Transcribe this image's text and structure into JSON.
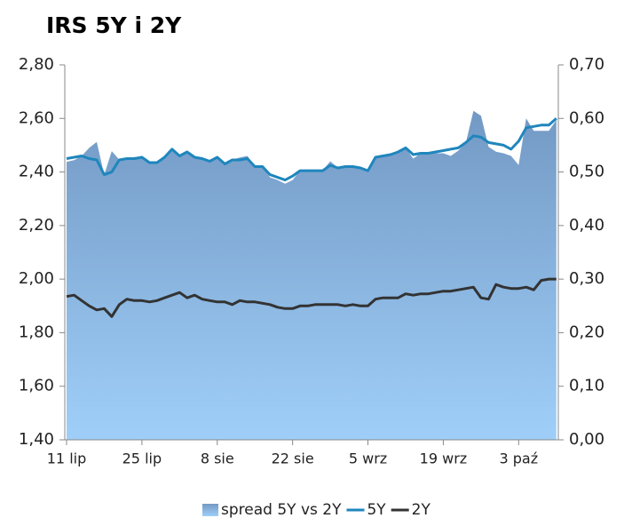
{
  "chart_data": {
    "type": "combo",
    "title": "IRS 5Y i 2Y",
    "categories": [
      "11 lip",
      null,
      null,
      null,
      null,
      null,
      null,
      null,
      null,
      null,
      "25 lip",
      null,
      null,
      null,
      null,
      null,
      null,
      null,
      null,
      null,
      "8 sie",
      null,
      null,
      null,
      null,
      null,
      null,
      null,
      null,
      null,
      "22 sie",
      null,
      null,
      null,
      null,
      null,
      null,
      null,
      null,
      null,
      "5 wrz",
      null,
      null,
      null,
      null,
      null,
      null,
      null,
      null,
      null,
      "19 wrz",
      null,
      null,
      null,
      null,
      null,
      null,
      null,
      null,
      null,
      "3 paź",
      null,
      null,
      null,
      null,
      null
    ],
    "series": [
      {
        "name": "spread 5Y vs 2Y",
        "type": "area",
        "axis": "y2",
        "color": "#7399c4",
        "values": [
          0.519,
          0.522,
          0.53,
          0.545,
          0.556,
          0.495,
          0.539,
          0.523,
          0.525,
          0.528,
          0.528,
          0.518,
          0.515,
          0.528,
          0.543,
          0.53,
          0.54,
          0.528,
          0.525,
          0.52,
          0.528,
          0.515,
          0.523,
          0.527,
          0.53,
          0.51,
          0.51,
          0.49,
          0.485,
          0.478,
          0.485,
          0.503,
          0.503,
          0.503,
          0.503,
          0.52,
          0.508,
          0.51,
          0.51,
          0.508,
          0.503,
          0.528,
          0.53,
          0.533,
          0.538,
          0.545,
          0.525,
          0.535,
          0.535,
          0.535,
          0.535,
          0.53,
          0.54,
          0.555,
          0.614,
          0.605,
          0.547,
          0.538,
          0.535,
          0.53,
          0.513,
          0.6,
          0.577,
          0.577,
          0.577,
          0.597
        ]
      },
      {
        "name": "5Y",
        "type": "line",
        "color": "#1f86bd",
        "values": [
          2.45,
          2.455,
          2.46,
          2.45,
          2.445,
          2.39,
          2.4,
          2.445,
          2.45,
          2.45,
          2.455,
          2.435,
          2.435,
          2.455,
          2.485,
          2.46,
          2.475,
          2.455,
          2.45,
          2.44,
          2.455,
          2.43,
          2.445,
          2.445,
          2.45,
          2.42,
          2.42,
          2.39,
          2.38,
          2.37,
          2.385,
          2.405,
          2.405,
          2.405,
          2.405,
          2.425,
          2.415,
          2.42,
          2.42,
          2.415,
          2.405,
          2.455,
          2.46,
          2.465,
          2.475,
          2.49,
          2.465,
          2.47,
          2.47,
          2.475,
          2.48,
          2.485,
          2.49,
          2.51,
          2.535,
          2.53,
          2.51,
          2.505,
          2.5,
          2.485,
          2.515,
          2.565,
          2.57,
          2.575,
          2.575,
          2.6
        ]
      },
      {
        "name": "2Y",
        "type": "line",
        "color": "#333333",
        "values": [
          1.935,
          1.94,
          1.92,
          1.9,
          1.885,
          1.89,
          1.86,
          1.905,
          1.925,
          1.92,
          1.92,
          1.915,
          1.92,
          1.93,
          1.94,
          1.95,
          1.93,
          1.94,
          1.925,
          1.92,
          1.915,
          1.915,
          1.905,
          1.92,
          1.915,
          1.915,
          1.91,
          1.905,
          1.895,
          1.89,
          1.89,
          1.9,
          1.9,
          1.905,
          1.905,
          1.905,
          1.905,
          1.9,
          1.905,
          1.9,
          1.9,
          1.925,
          1.93,
          1.93,
          1.93,
          1.945,
          1.94,
          1.945,
          1.945,
          1.95,
          1.955,
          1.955,
          1.96,
          1.965,
          1.97,
          1.93,
          1.925,
          1.98,
          1.97,
          1.965,
          1.965,
          1.97,
          1.96,
          1.995,
          2.0,
          2.0
        ]
      }
    ],
    "ylim": [
      1.4,
      2.8
    ],
    "yticks": [
      {
        "value": 1.4,
        "label": "1,40"
      },
      {
        "value": 1.6,
        "label": "1,60"
      },
      {
        "value": 1.8,
        "label": "1,80"
      },
      {
        "value": 2.0,
        "label": "2,00"
      },
      {
        "value": 2.2,
        "label": "2,20"
      },
      {
        "value": 2.4,
        "label": "2,40"
      },
      {
        "value": 2.6,
        "label": "2,60"
      },
      {
        "value": 2.8,
        "label": "2,80"
      }
    ],
    "y2lim": [
      0,
      0.7
    ],
    "y2ticks": [
      {
        "value": 0,
        "label": "0,00"
      },
      {
        "value": 0.1,
        "label": "0,10"
      },
      {
        "value": 0.2,
        "label": "0,20"
      },
      {
        "value": 0.3,
        "label": "0,30"
      },
      {
        "value": 0.4,
        "label": "0,40"
      },
      {
        "value": 0.5,
        "label": "0,50"
      },
      {
        "value": 0.6,
        "label": "0,60"
      },
      {
        "value": 0.7,
        "label": "0,70"
      }
    ],
    "grid": false,
    "legend": "bottom"
  }
}
